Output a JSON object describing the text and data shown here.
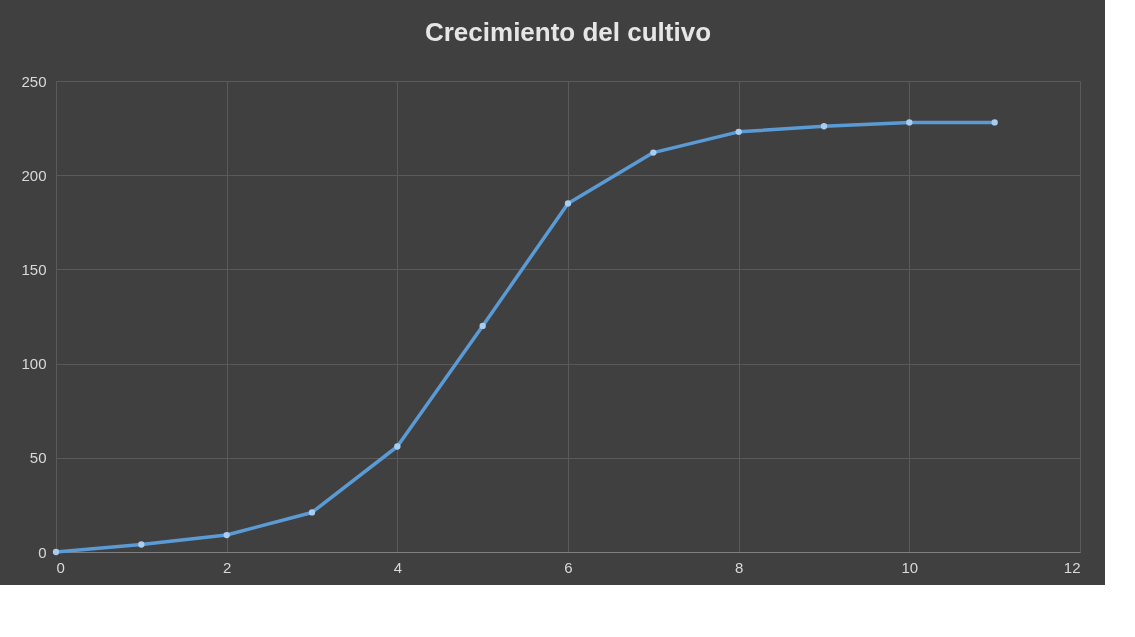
{
  "chart_data": {
    "type": "line",
    "title": "Crecimiento del cultivo",
    "x": [
      0,
      1,
      2,
      3,
      4,
      5,
      6,
      7,
      8,
      9,
      10,
      11
    ],
    "series": [
      {
        "color": "#5b9bd5",
        "values": [
          0,
          4,
          9,
          21,
          56,
          120,
          185,
          212,
          223,
          226,
          228,
          228
        ]
      }
    ],
    "xlim": [
      0,
      12
    ],
    "xticks": [
      0,
      2,
      4,
      6,
      8,
      10,
      12
    ],
    "ylim": [
      0,
      250
    ],
    "yticks": [
      0,
      50,
      100,
      150,
      200,
      250
    ],
    "grid": true,
    "marker": "circle",
    "line_style": "solid"
  }
}
